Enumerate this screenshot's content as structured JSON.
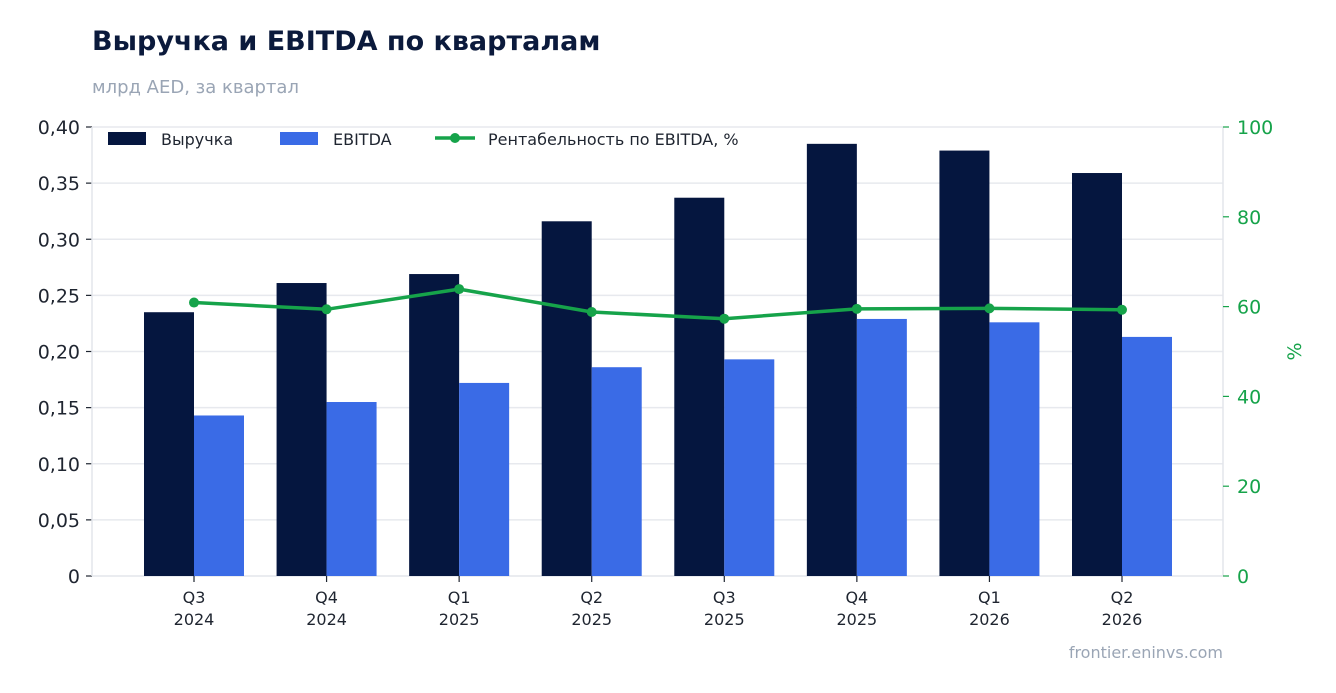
{
  "chart_data": {
    "type": "bar",
    "title": "Выручка и EBITDA по кварталам",
    "subtitle": "млрд AED, за квартал",
    "source": "frontier.eninvs.com",
    "categories": [
      [
        "Q3",
        "2024"
      ],
      [
        "Q4",
        "2024"
      ],
      [
        "Q1",
        "2025"
      ],
      [
        "Q2",
        "2025"
      ],
      [
        "Q3",
        "2025"
      ],
      [
        "Q4",
        "2025"
      ],
      [
        "Q1",
        "2026"
      ],
      [
        "Q2",
        "2026"
      ]
    ],
    "series": [
      {
        "name": "Выручка",
        "type": "bar",
        "axis": "left",
        "color": "#05163f",
        "values": [
          0.235,
          0.261,
          0.269,
          0.316,
          0.337,
          0.385,
          0.379,
          0.359
        ]
      },
      {
        "name": "EBITDA",
        "type": "bar",
        "axis": "left",
        "color": "#3a6be6",
        "values": [
          0.143,
          0.155,
          0.172,
          0.186,
          0.193,
          0.229,
          0.226,
          0.213
        ]
      },
      {
        "name": "Рентабельность по EBITDA, %",
        "type": "line",
        "axis": "right",
        "color": "#16a34a",
        "values": [
          60.9,
          59.4,
          63.9,
          58.8,
          57.3,
          59.5,
          59.6,
          59.3
        ]
      }
    ],
    "y_left": {
      "ylim": [
        0,
        0.4
      ],
      "ticks": [
        0,
        0.05,
        0.1,
        0.15,
        0.2,
        0.25,
        0.3,
        0.35,
        0.4
      ],
      "tick_labels": [
        "0",
        "0,05",
        "0,10",
        "0,15",
        "0,20",
        "0,25",
        "0,30",
        "0,35",
        "0,40"
      ]
    },
    "y_right": {
      "label": "%",
      "ylim": [
        0,
        100
      ],
      "ticks": [
        0,
        20,
        40,
        60,
        80,
        100
      ],
      "tick_labels": [
        "0",
        "20",
        "40",
        "60",
        "80",
        "100"
      ]
    },
    "grid": true,
    "legend_position": "top-left"
  }
}
